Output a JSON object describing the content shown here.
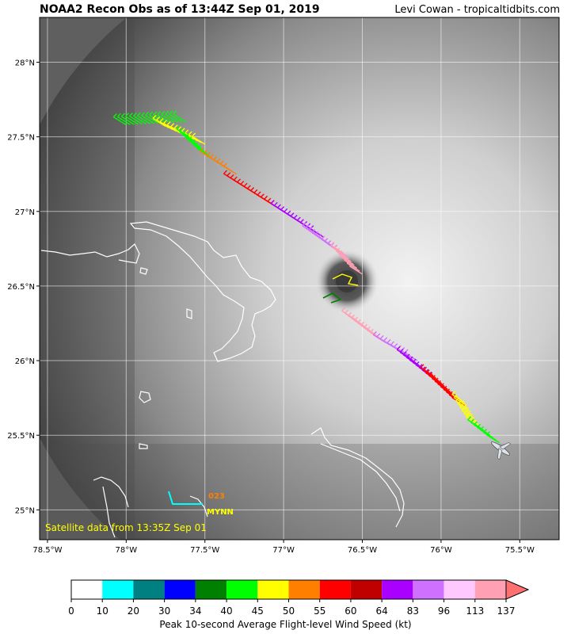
{
  "header": {
    "title": "NOAA2 Recon Obs as of 13:44Z Sep 01, 2019",
    "credit": "Levi Cowan - tropicaltidbits.com"
  },
  "map": {
    "lat_ticks": [
      "28°N",
      "27.5°N",
      "27°N",
      "26.5°N",
      "26°N",
      "25.5°N",
      "25°N"
    ],
    "lon_ticks": [
      "78.5°W",
      "78°W",
      "77.5°W",
      "77°W",
      "76.5°W",
      "76°W",
      "75.5°W"
    ],
    "satellite_note": "Satellite data from 13:35Z Sep 01",
    "station_label": "MYNN",
    "station_value": "023",
    "extent": {
      "lon_min": -78.55,
      "lon_max": -75.25,
      "lat_min": 24.8,
      "lat_max": 28.3
    }
  },
  "colorbar": {
    "bins": [
      "0",
      "10",
      "20",
      "30",
      "34",
      "40",
      "45",
      "50",
      "55",
      "60",
      "64",
      "83",
      "96",
      "113",
      "137"
    ],
    "colors": [
      "#ffffff",
      "#00ffff",
      "#008080",
      "#0000ff",
      "#008000",
      "#00ff00",
      "#ffff00",
      "#ff8000",
      "#ff0000",
      "#c00000",
      "#aa00ff",
      "#d070ff",
      "#ffc8ff",
      "#ffa0b4"
    ],
    "extend_color": "#ff7070",
    "label": "Peak 10-second Average Flight-level Wind Speed (kt)"
  },
  "track": {
    "segments": [
      {
        "from": [
          -78.0,
          27.58
        ],
        "to": [
          -77.62,
          27.6
        ],
        "color": "#00ff00"
      },
      {
        "from": [
          -77.75,
          27.57
        ],
        "to": [
          -77.5,
          27.45
        ],
        "color": "#ffff00"
      },
      {
        "from": [
          -77.6,
          27.5
        ],
        "to": [
          -77.45,
          27.35
        ],
        "color": "#00ff00"
      },
      {
        "from": [
          -77.45,
          27.35
        ],
        "to": [
          -77.3,
          27.25
        ],
        "color": "#ff8000"
      },
      {
        "from": [
          -77.3,
          27.2
        ],
        "to": [
          -77.0,
          27.0
        ],
        "color": "#ff0000"
      },
      {
        "from": [
          -77.0,
          27.0
        ],
        "to": [
          -76.75,
          26.83
        ],
        "color": "#aa00ff"
      },
      {
        "from": [
          -76.8,
          26.85
        ],
        "to": [
          -76.6,
          26.7
        ],
        "color": "#d070ff"
      },
      {
        "from": [
          -76.62,
          26.72
        ],
        "to": [
          -76.5,
          26.58
        ],
        "color": "#ffa0b4"
      },
      {
        "from": [
          -76.55,
          26.28
        ],
        "to": [
          -76.35,
          26.12
        ],
        "color": "#ffa0b4"
      },
      {
        "from": [
          -76.35,
          26.12
        ],
        "to": [
          -76.15,
          26.0
        ],
        "color": "#d070ff"
      },
      {
        "from": [
          -76.2,
          26.02
        ],
        "to": [
          -76.0,
          25.85
        ],
        "color": "#aa00ff"
      },
      {
        "from": [
          -76.05,
          25.9
        ],
        "to": [
          -75.85,
          25.7
        ],
        "color": "#ff0000"
      },
      {
        "from": [
          -75.85,
          25.72
        ],
        "to": [
          -75.75,
          25.55
        ],
        "color": "#ffff00"
      },
      {
        "from": [
          -75.75,
          25.55
        ],
        "to": [
          -75.63,
          25.45
        ],
        "color": "#00ff00"
      }
    ]
  }
}
